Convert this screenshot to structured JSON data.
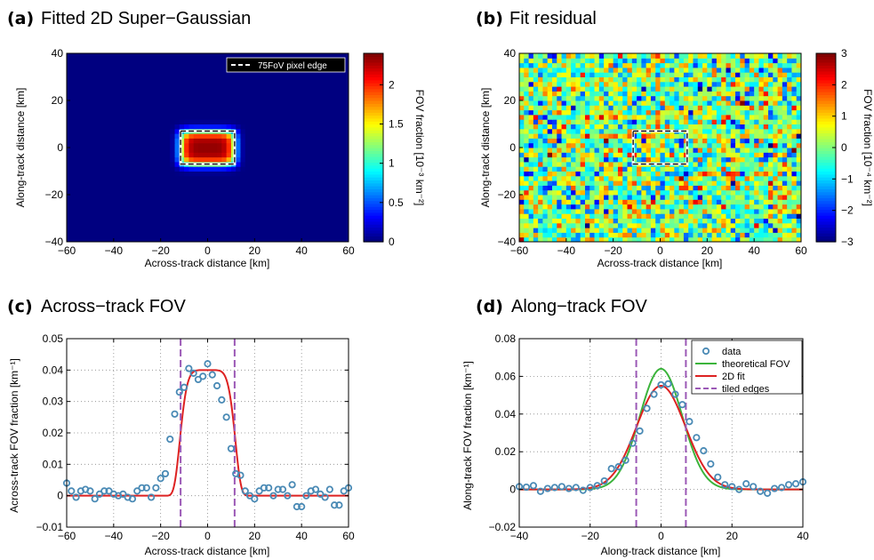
{
  "chart_data": [
    {
      "panel": "(a)",
      "type": "heatmap",
      "title": "Fitted 2D Super−Gaussian",
      "xlabel": "Across-track distance [km]",
      "ylabel": "Along-track distance [km]",
      "xlim": [
        -60,
        60
      ],
      "ylim": [
        -40,
        40
      ],
      "xticks": [
        "−60",
        "−40",
        "−20",
        "0",
        "20",
        "40",
        "60"
      ],
      "yticks": [
        "−40",
        "−20",
        "0",
        "20",
        "40"
      ],
      "colorbar": {
        "label": "FOV fraction [10⁻³ km⁻²]",
        "range": [
          0,
          2.4
        ],
        "ticks": [
          "0",
          "0.5",
          "1",
          "1.5",
          "2"
        ],
        "colormap": "jet"
      },
      "model": {
        "kind": "super-gaussian",
        "peak": 2.35,
        "x_center": 0,
        "y_center": 0,
        "x_halfwidth": 11.5,
        "y_halfwidth": 7,
        "x_power": 3,
        "y_power": 2,
        "grid_km": 2
      },
      "pixel_edge": {
        "x": [
          -11.5,
          11.5
        ],
        "y": [
          -7,
          7
        ]
      },
      "legend": {
        "entries": [
          "75FoV pixel edge"
        ],
        "position": "top-right",
        "dark_background": true
      }
    },
    {
      "panel": "(b)",
      "type": "heatmap",
      "title": "Fit residual",
      "xlabel": "Across-track distance [km]",
      "ylabel": "Along-track distance [km]",
      "xlim": [
        -60,
        60
      ],
      "ylim": [
        -40,
        40
      ],
      "xticks": [
        "−60",
        "−40",
        "−20",
        "0",
        "20",
        "40",
        "60"
      ],
      "yticks": [
        "−40",
        "−20",
        "0",
        "20",
        "40"
      ],
      "colorbar": {
        "label": "FOV fraction [10⁻⁴ km⁻²]",
        "range": [
          -3,
          3
        ],
        "ticks": [
          "−3",
          "−2",
          "−1",
          "0",
          "1",
          "2",
          "3"
        ],
        "colormap": "jet"
      },
      "model": {
        "kind": "random-residual",
        "std": 1.0,
        "grid_km": 2
      },
      "pixel_edge": {
        "x": [
          -11.5,
          11.5
        ],
        "y": [
          -7,
          7
        ]
      }
    },
    {
      "panel": "(c)",
      "type": "line",
      "title": "Across−track FOV",
      "xlabel": "Across-track distance [km]",
      "ylabel": "Across-track FOV fraction [km⁻¹]",
      "xlim": [
        -60,
        60
      ],
      "ylim": [
        -0.01,
        0.05
      ],
      "grid": true,
      "xticks": [
        -60,
        -40,
        -20,
        0,
        20,
        40,
        60
      ],
      "yticks": [
        -0.01,
        0,
        0.01,
        0.02,
        0.03,
        0.04,
        0.05
      ],
      "xtick_labels": [
        "−60",
        "−40",
        "−20",
        "0",
        "20",
        "40",
        "60"
      ],
      "ytick_labels": [
        "−0.01",
        "0",
        "0.01",
        "0.02",
        "0.03",
        "0.04",
        "0.05"
      ],
      "series": [
        {
          "kind": "scatter",
          "x": [
            -60,
            -58,
            -56,
            -54,
            -52,
            -50,
            -48,
            -46,
            -44,
            -42,
            -40,
            -38,
            -36,
            -34,
            -32,
            -30,
            -28,
            -26,
            -24,
            -22,
            -20,
            -18,
            -16,
            -14,
            -12,
            -10,
            -8,
            -6,
            -4,
            -2,
            0,
            2,
            4,
            6,
            8,
            10,
            12,
            14,
            16,
            18,
            20,
            22,
            24,
            26,
            28,
            30,
            32,
            34,
            36,
            38,
            40,
            42,
            44,
            46,
            48,
            50,
            52,
            54,
            56,
            58,
            60
          ],
          "y": [
            0.004,
            0.0015,
            -0.0005,
            0.0015,
            0.002,
            0.0015,
            -0.001,
            0.0005,
            0.0015,
            0.0015,
            0.0005,
            0.0,
            0.0005,
            -0.0005,
            -0.001,
            0.0015,
            0.0025,
            0.0025,
            -0.0005,
            0.0025,
            0.0055,
            0.007,
            0.018,
            0.026,
            0.033,
            0.0345,
            0.0405,
            0.039,
            0.037,
            0.038,
            0.042,
            0.0385,
            0.035,
            0.0305,
            0.025,
            0.015,
            0.007,
            0.0065,
            0.0015,
            0.0,
            -0.001,
            0.0015,
            0.0025,
            0.0025,
            0.0,
            0.002,
            0.002,
            0.0,
            0.0035,
            -0.0035,
            -0.0035,
            0.0,
            0.0015,
            0.002,
            0.0005,
            -0.0005,
            0.002,
            -0.003,
            -0.003,
            0.0015,
            0.0025
          ],
          "color": "#4a8ab5"
        },
        {
          "kind": "line",
          "model": {
            "peak": 0.04,
            "halfwidth": 11.5,
            "power": 3
          },
          "color": "#dd2222"
        }
      ],
      "vlines": [
        -11.5,
        11.5
      ]
    },
    {
      "panel": "(d)",
      "type": "line",
      "title": "Along−track FOV",
      "xlabel": "Along-track distance [km]",
      "ylabel": "Along-track FOV fraction [km⁻¹]",
      "xlim": [
        -40,
        40
      ],
      "ylim": [
        -0.02,
        0.08
      ],
      "grid": true,
      "xticks": [
        -40,
        -20,
        0,
        20,
        40
      ],
      "yticks": [
        -0.02,
        0,
        0.02,
        0.04,
        0.06,
        0.08
      ],
      "xtick_labels": [
        "−40",
        "−20",
        "0",
        "20",
        "40"
      ],
      "ytick_labels": [
        "−0.02",
        "0",
        "0.02",
        "0.04",
        "0.06",
        "0.08"
      ],
      "series": [
        {
          "name": "data",
          "kind": "scatter",
          "x": [
            -40,
            -38,
            -36,
            -34,
            -32,
            -30,
            -28,
            -26,
            -24,
            -22,
            -20,
            -18,
            -16,
            -14,
            -12,
            -10,
            -8,
            -6,
            -4,
            -2,
            0,
            2,
            4,
            6,
            8,
            10,
            12,
            14,
            16,
            18,
            20,
            22,
            24,
            26,
            28,
            30,
            32,
            34,
            36,
            38,
            40
          ],
          "y": [
            0.0015,
            0.0012,
            0.002,
            -0.001,
            0.0005,
            0.001,
            0.0015,
            0.0005,
            0.001,
            -0.0005,
            0.001,
            0.002,
            0.0045,
            0.011,
            0.012,
            0.0155,
            0.0245,
            0.031,
            0.043,
            0.0505,
            0.0555,
            0.056,
            0.0505,
            0.045,
            0.036,
            0.0275,
            0.0205,
            0.0135,
            0.0065,
            0.0025,
            0.0015,
            0.0,
            0.003,
            0.0015,
            -0.001,
            -0.002,
            0.0005,
            0.001,
            0.0025,
            0.003,
            0.004
          ],
          "color": "#4a8ab5"
        },
        {
          "name": "theoretical FOV",
          "kind": "line",
          "model": {
            "peak": 0.064,
            "sigma": 6.0
          },
          "color": "#3cb43c"
        },
        {
          "name": "2D fit",
          "kind": "line",
          "model": {
            "peak": 0.055,
            "sigma": 6.9
          },
          "color": "#dd2222"
        },
        {
          "name": "tiled edges",
          "kind": "vlines",
          "x": [
            -7,
            7
          ],
          "color": "#9b59b6"
        }
      ],
      "legend": {
        "position": "top-right"
      }
    }
  ]
}
